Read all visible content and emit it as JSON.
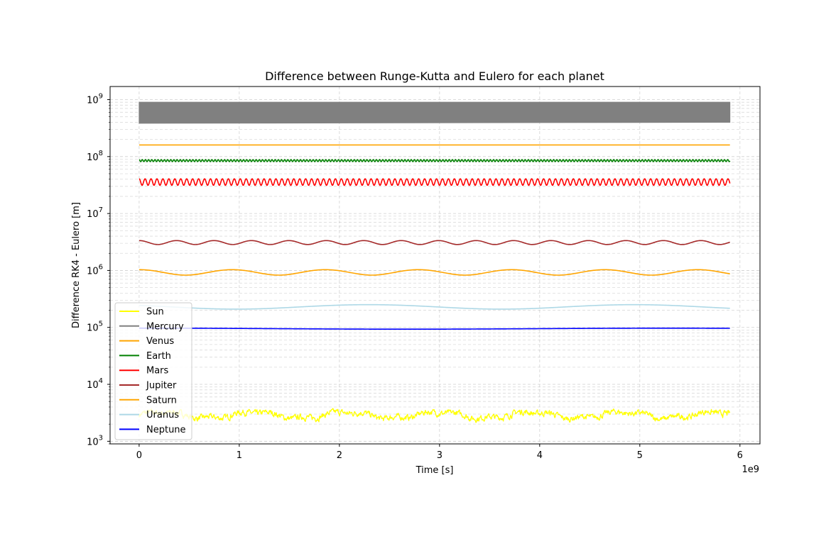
{
  "chart_data": {
    "type": "line",
    "title": "Difference between Runge-Kutta and Eulero for each planet",
    "xlabel": "Time [s]",
    "ylabel": "Difference RK4 - Eulero [m]",
    "x_offset_label": "1e9",
    "x_scale": "linear",
    "y_scale": "log",
    "xlim": [
      -0.29,
      6.2
    ],
    "ylim": [
      900,
      1700000000
    ],
    "x_ticks": [
      {
        "value": 0,
        "label": "0"
      },
      {
        "value": 1,
        "label": "1"
      },
      {
        "value": 2,
        "label": "2"
      },
      {
        "value": 3,
        "label": "3"
      },
      {
        "value": 4,
        "label": "4"
      },
      {
        "value": 5,
        "label": "5"
      },
      {
        "value": 6,
        "label": "6"
      }
    ],
    "y_ticks": [
      {
        "value": 1000,
        "base": "10",
        "exp": "3"
      },
      {
        "value": 10000,
        "base": "10",
        "exp": "4"
      },
      {
        "value": 100000,
        "base": "10",
        "exp": "5"
      },
      {
        "value": 1000000,
        "base": "10",
        "exp": "6"
      },
      {
        "value": 10000000,
        "base": "10",
        "exp": "7"
      },
      {
        "value": 100000000,
        "base": "10",
        "exp": "8"
      },
      {
        "value": 1000000000,
        "base": "10",
        "exp": "9"
      }
    ],
    "grid": true,
    "legend_position": "lower-left",
    "x_range": [
      0,
      5.9
    ],
    "series": [
      {
        "name": "Sun",
        "color": "#ffff00",
        "style": "noisy",
        "mean": 2900,
        "amplitude": 0.12,
        "period": 0.92,
        "noise": 0.13,
        "cycles_hint": 0
      },
      {
        "name": "Mercury",
        "color": "#808080",
        "style": "band",
        "low": 400000000,
        "high": 900000000
      },
      {
        "name": "Venus",
        "color": "#ffa500",
        "style": "flat",
        "mean": 160000000,
        "amplitude": 0.0
      },
      {
        "name": "Earth",
        "color": "#008000",
        "style": "fast",
        "mean": 85000000,
        "amplitude": 0.04,
        "period": 0.0316
      },
      {
        "name": "Mars",
        "color": "#ff0000",
        "style": "fast",
        "mean": 36000000,
        "amplitude": 0.13,
        "period": 0.0594
      },
      {
        "name": "Jupiter",
        "color": "#a52a2a",
        "style": "sine",
        "mean": 3100000,
        "amplitude": 0.08,
        "period": 0.374
      },
      {
        "name": "Saturn",
        "color": "#ffa500",
        "style": "sine",
        "mean": 930000,
        "amplitude": 0.11,
        "period": 0.93
      },
      {
        "name": "Uranus",
        "color": "#add8e6",
        "style": "sine",
        "mean": 230000,
        "amplitude": 0.09,
        "period": 2.65,
        "phase": 0.85
      },
      {
        "name": "Neptune",
        "color": "#0000ff",
        "style": "sine",
        "mean": 95000,
        "amplitude": 0.02,
        "period": 5.2,
        "phase": -0.1
      }
    ]
  }
}
